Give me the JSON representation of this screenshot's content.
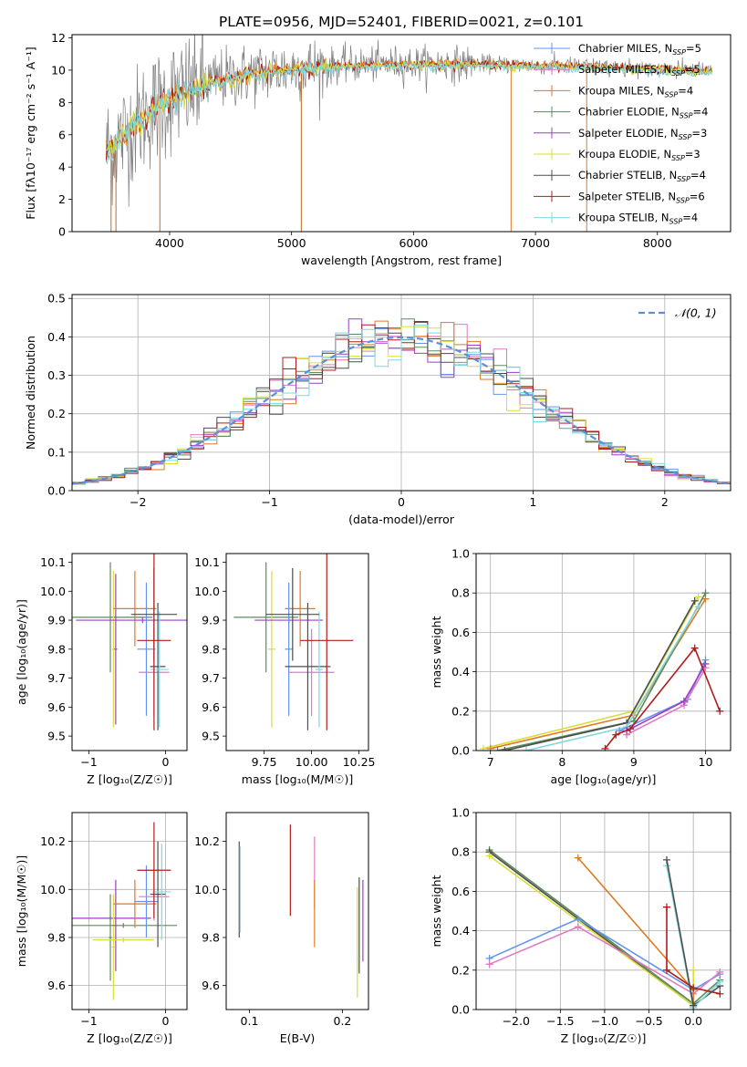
{
  "figure_title": "PLATE=0956, MJD=52401, FIBERID=0021, z=0.101",
  "colors": {
    "chabrier_miles": "#6495ed",
    "salpeter_miles": "#e377c2",
    "kroupa_miles": "#e07a1f",
    "chabrier_elodie": "#5c8a5c",
    "salpeter_elodie": "#9d3fc4",
    "kroupa_elodie": "#d6df3b",
    "chabrier_stelib": "#4d4d4d",
    "salpeter_stelib": "#b01c1c",
    "kroupa_stelib": "#7fd8e0",
    "data_grey": "#808080",
    "normal_curve": "#5b8fd6",
    "grid": "#b0b0b0"
  },
  "chart_data": [
    {
      "id": "spectrum",
      "type": "line",
      "title": "PLATE=0956, MJD=52401, FIBERID=0021, z=0.101",
      "xlabel": "wavelength [Angstrom, rest frame]",
      "ylabel": "Flux [f$_\\lambda$10$^{-17}$ erg cm$^{-2}$ s$^{-1}$ A$^{-1}$]",
      "ylabel_text": "Flux [fλ10⁻¹⁷ erg cm⁻² s⁻¹ A⁻¹]",
      "xlim": [
        3200,
        8600
      ],
      "ylim": [
        0,
        12.2
      ],
      "xticks": [
        4000,
        5000,
        6000,
        7000,
        8000
      ],
      "yticks": [
        0,
        2,
        4,
        6,
        8,
        10,
        12
      ],
      "grid": false,
      "legend_position": "top-right",
      "legend": [
        {
          "label": "Chabrier MILES, N",
          "sub": "SSP",
          "suffix": "=5",
          "color_key": "chabrier_miles"
        },
        {
          "label": "Salpeter MILES, N",
          "sub": "SSP",
          "suffix": "=5",
          "color_key": "salpeter_miles"
        },
        {
          "label": "Kroupa MILES, N",
          "sub": "SSP",
          "suffix": "=4",
          "color_key": "kroupa_miles"
        },
        {
          "label": "Chabrier ELODIE, N",
          "sub": "SSP",
          "suffix": "=4",
          "color_key": "chabrier_elodie"
        },
        {
          "label": "Salpeter ELODIE, N",
          "sub": "SSP",
          "suffix": "=3",
          "color_key": "salpeter_elodie"
        },
        {
          "label": "Kroupa ELODIE, N",
          "sub": "SSP",
          "suffix": "=3",
          "color_key": "kroupa_elodie"
        },
        {
          "label": "Chabrier STELIB, N",
          "sub": "SSP",
          "suffix": "=4",
          "color_key": "chabrier_stelib"
        },
        {
          "label": "Salpeter STELIB, N",
          "sub": "SSP",
          "suffix": "=6",
          "color_key": "salpeter_stelib"
        },
        {
          "label": "Kroupa STELIB, N",
          "sub": "SSP",
          "suffix": "=4",
          "color_key": "kroupa_stelib"
        }
      ],
      "model_curve": {
        "x": [
          3480,
          3600,
          3700,
          3800,
          3900,
          4000,
          4200,
          4400,
          4600,
          4800,
          5000,
          5200,
          5400,
          5600,
          5800,
          6000,
          6200,
          6400,
          6600,
          6800,
          7000,
          7200,
          7400,
          7600,
          7800,
          8000,
          8200,
          8400
        ],
        "y": [
          5.0,
          5.8,
          6.5,
          7.2,
          7.8,
          8.3,
          8.9,
          9.4,
          9.7,
          9.9,
          10.1,
          10.2,
          10.3,
          10.35,
          10.4,
          10.4,
          10.4,
          10.4,
          10.4,
          10.35,
          10.3,
          10.3,
          10.25,
          10.2,
          10.15,
          10.1,
          10.0,
          9.95
        ]
      },
      "notes_drop_lines_x": [
        3520,
        3560,
        3920,
        5080,
        6800,
        7420
      ]
    },
    {
      "id": "residuals",
      "type": "line",
      "xlabel": "(data-model)/error",
      "ylabel": "Normed distribution",
      "xlim": [
        -2.5,
        2.5
      ],
      "ylim": [
        0,
        0.51
      ],
      "xticks": [
        -2,
        -1,
        0,
        1,
        2
      ],
      "xticklabels": [
        "−2",
        "−1",
        "0",
        "1",
        "2"
      ],
      "yticks": [
        0.0,
        0.1,
        0.2,
        0.3,
        0.4,
        0.5
      ],
      "grid": true,
      "legend_position": "top-right",
      "legend": [
        {
          "label": "𝒩(0, 1)",
          "color_key": "normal_curve"
        }
      ],
      "bin_width": 0.1,
      "bin_start": -2.5
    },
    {
      "id": "age_vs_Z",
      "type": "scatter",
      "xlabel": "Z [log₁₀(Z/Z☉)]",
      "ylabel": "age  [log₁₀(age/yr)]",
      "xlim": [
        -1.22,
        0.28
      ],
      "ylim": [
        9.45,
        10.13
      ],
      "xticks": [
        -1,
        0
      ],
      "xticklabels": [
        "−1",
        "0"
      ],
      "yticks": [
        9.5,
        9.6,
        9.7,
        9.8,
        9.9,
        10.0,
        10.1
      ],
      "points": [
        {
          "x": -0.72,
          "y": 9.91,
          "xerr": 0.55,
          "yerr": 0.19,
          "color_key": "chabrier_elodie"
        },
        {
          "x": -0.68,
          "y": 9.8,
          "xerr": 0.02,
          "yerr": 0.27,
          "color_key": "kroupa_elodie"
        },
        {
          "x": -0.65,
          "y": 9.8,
          "xerr": 0.02,
          "yerr": 0.26,
          "color_key": "salpeter_elodie"
        },
        {
          "x": -0.4,
          "y": 9.94,
          "xerr": 0.28,
          "yerr": 0.13,
          "color_key": "kroupa_miles"
        },
        {
          "x": -0.3,
          "y": 9.9,
          "xerr": 0.87,
          "yerr": 0.01,
          "color_key": "salpeter_elodie"
        },
        {
          "x": -0.25,
          "y": 9.8,
          "xerr": 0.12,
          "yerr": 0.23,
          "color_key": "chabrier_miles"
        },
        {
          "x": -0.15,
          "y": 9.72,
          "xerr": 0.2,
          "yerr": 0.15,
          "color_key": "salpeter_miles"
        },
        {
          "x": -0.1,
          "y": 9.74,
          "xerr": 0.1,
          "yerr": 0.22,
          "color_key": "chabrier_stelib"
        },
        {
          "x": -0.08,
          "y": 9.73,
          "xerr": 0.12,
          "yerr": 0.2,
          "color_key": "kroupa_stelib"
        },
        {
          "x": -0.15,
          "y": 9.92,
          "xerr": 0.3,
          "yerr": 0.16,
          "color_key": "chabrier_stelib"
        },
        {
          "x": -0.15,
          "y": 9.83,
          "xerr": 0.22,
          "yerr": 0.31,
          "color_key": "salpeter_stelib"
        }
      ]
    },
    {
      "id": "age_vs_mass",
      "type": "scatter",
      "xlabel": "mass [log₁₀(M/M☉)]",
      "ylabel": "",
      "xlim": [
        9.55,
        10.3
      ],
      "ylim": [
        9.45,
        10.13
      ],
      "xticks": [
        9.75,
        10.0,
        10.25
      ],
      "xticklabels": [
        "9.75",
        "10.00",
        "10.25"
      ],
      "yticks": [
        9.5,
        9.6,
        9.7,
        9.8,
        9.9,
        10.0,
        10.1
      ],
      "points": [
        {
          "x": 9.76,
          "y": 9.91,
          "xerr": 0.17,
          "yerr": 0.19,
          "color_key": "chabrier_elodie"
        },
        {
          "x": 9.79,
          "y": 9.8,
          "xerr": 0.02,
          "yerr": 0.27,
          "color_key": "kroupa_elodie"
        },
        {
          "x": 9.88,
          "y": 9.9,
          "xerr": 0.18,
          "yerr": 0.01,
          "color_key": "salpeter_elodie"
        },
        {
          "x": 9.94,
          "y": 9.94,
          "xerr": 0.08,
          "yerr": 0.13,
          "color_key": "kroupa_miles"
        },
        {
          "x": 9.88,
          "y": 9.8,
          "xerr": 0.02,
          "yerr": 0.23,
          "color_key": "chabrier_miles"
        },
        {
          "x": 10.0,
          "y": 9.72,
          "xerr": 0.12,
          "yerr": 0.15,
          "color_key": "salpeter_miles"
        },
        {
          "x": 9.98,
          "y": 9.74,
          "xerr": 0.12,
          "yerr": 0.22,
          "color_key": "chabrier_stelib"
        },
        {
          "x": 10.04,
          "y": 9.73,
          "xerr": 0.02,
          "yerr": 0.2,
          "color_key": "kroupa_stelib"
        },
        {
          "x": 9.9,
          "y": 9.92,
          "xerr": 0.14,
          "yerr": 0.16,
          "color_key": "chabrier_stelib"
        },
        {
          "x": 10.08,
          "y": 9.83,
          "xerr": 0.14,
          "yerr": 0.31,
          "color_key": "salpeter_stelib"
        }
      ]
    },
    {
      "id": "weight_vs_age",
      "type": "line",
      "xlabel": "age  [log₁₀(age/yr)]",
      "ylabel": "mass weight",
      "xlim": [
        6.8,
        10.35
      ],
      "ylim": [
        0,
        1.0
      ],
      "xticks": [
        7,
        8,
        9,
        10
      ],
      "yticks": [
        0.0,
        0.2,
        0.4,
        0.6,
        0.8,
        1.0
      ],
      "grid": true,
      "series": [
        {
          "color_key": "kroupa_elodie",
          "x": [
            6.9,
            9.0,
            9.9
          ],
          "y": [
            0.01,
            0.2,
            0.78
          ]
        },
        {
          "color_key": "kroupa_miles",
          "x": [
            7.0,
            9.0,
            10.0
          ],
          "y": [
            0.01,
            0.18,
            0.77
          ]
        },
        {
          "color_key": "chabrier_elodie",
          "x": [
            7.1,
            9.0,
            10.0
          ],
          "y": [
            0.0,
            0.15,
            0.8
          ]
        },
        {
          "color_key": "chabrier_stelib",
          "x": [
            7.2,
            8.9,
            9.85
          ],
          "y": [
            0.0,
            0.14,
            0.76
          ]
        },
        {
          "color_key": "kroupa_stelib",
          "x": [
            7.5,
            8.9,
            9.9
          ],
          "y": [
            0.0,
            0.12,
            0.73
          ]
        },
        {
          "color_key": "chabrier_miles",
          "x": [
            8.8,
            9.75,
            10.0
          ],
          "y": [
            0.1,
            0.26,
            0.46
          ]
        },
        {
          "color_key": "salpeter_miles",
          "x": [
            8.9,
            9.7,
            10.0
          ],
          "y": [
            0.08,
            0.23,
            0.42
          ]
        },
        {
          "color_key": "salpeter_elodie",
          "x": [
            8.9,
            9.7,
            10.0
          ],
          "y": [
            0.1,
            0.25,
            0.44
          ]
        },
        {
          "color_key": "salpeter_stelib",
          "x": [
            8.6,
            8.75,
            8.95,
            9.85,
            10.2
          ],
          "y": [
            0.01,
            0.08,
            0.11,
            0.52,
            0.2
          ]
        }
      ]
    },
    {
      "id": "mass_vs_Z",
      "type": "scatter",
      "xlabel": "Z [log₁₀(Z/Z☉)]",
      "ylabel": "mass [log₁₀(M/M☉)]",
      "xlim": [
        -1.22,
        0.28
      ],
      "ylim": [
        9.5,
        10.32
      ],
      "xticks": [
        -1,
        0
      ],
      "xticklabels": [
        "−1",
        "0"
      ],
      "yticks": [
        9.6,
        9.8,
        10.0,
        10.2
      ],
      "grid": true,
      "points": [
        {
          "x": -0.72,
          "y": 9.88,
          "xerr": 0.53,
          "yerr": 0.01,
          "color_key": "salpeter_elodie"
        },
        {
          "x": -0.68,
          "y": 9.76,
          "xerr": 0.02,
          "yerr": 0.22,
          "color_key": "kroupa_elodie"
        },
        {
          "x": -0.65,
          "y": 9.85,
          "xerr": 0.02,
          "yerr": 0.19,
          "color_key": "salpeter_elodie"
        },
        {
          "x": -0.72,
          "y": 9.8,
          "xerr": 0.02,
          "yerr": 0.18,
          "color_key": "chabrier_elodie"
        },
        {
          "x": -0.55,
          "y": 9.79,
          "xerr": 0.4,
          "yerr": 0.01,
          "color_key": "kroupa_elodie"
        },
        {
          "x": -0.55,
          "y": 9.85,
          "xerr": 0.7,
          "yerr": 0.01,
          "color_key": "chabrier_elodie"
        },
        {
          "x": -0.4,
          "y": 9.94,
          "xerr": 0.28,
          "yerr": 0.1,
          "color_key": "kroupa_miles"
        },
        {
          "x": -0.25,
          "y": 9.95,
          "xerr": 0.15,
          "yerr": 0.15,
          "color_key": "chabrier_miles"
        },
        {
          "x": -0.15,
          "y": 9.97,
          "xerr": 0.2,
          "yerr": 0.1,
          "color_key": "salpeter_miles"
        },
        {
          "x": -0.1,
          "y": 9.98,
          "xerr": 0.1,
          "yerr": 0.22,
          "color_key": "chabrier_stelib"
        },
        {
          "x": -0.05,
          "y": 9.99,
          "xerr": 0.12,
          "yerr": 0.2,
          "color_key": "kroupa_stelib"
        },
        {
          "x": -0.15,
          "y": 10.08,
          "xerr": 0.22,
          "yerr": 0.2,
          "color_key": "salpeter_stelib"
        }
      ]
    },
    {
      "id": "mass_vs_ebv",
      "type": "scatter",
      "xlabel": "E(B-V)",
      "ylabel": "",
      "xlim": [
        0.075,
        0.228
      ],
      "ylim": [
        9.5,
        10.32
      ],
      "xticks": [
        0.1,
        0.2
      ],
      "xticklabels": [
        "0.1",
        "0.2"
      ],
      "yticks": [
        9.6,
        9.8,
        10.0,
        10.2
      ],
      "grid": false,
      "points": [
        {
          "x": 0.089,
          "y": 10.0,
          "xerr": 0,
          "yerr": 0.2,
          "color_key": "chabrier_stelib"
        },
        {
          "x": 0.09,
          "y": 10.0,
          "xerr": 0,
          "yerr": 0.18,
          "color_key": "kroupa_stelib"
        },
        {
          "x": 0.144,
          "y": 10.08,
          "xerr": 0,
          "yerr": 0.19,
          "color_key": "salpeter_stelib"
        },
        {
          "x": 0.17,
          "y": 10.07,
          "xerr": 0,
          "yerr": 0.15,
          "color_key": "salpeter_miles"
        },
        {
          "x": 0.17,
          "y": 9.9,
          "xerr": 0,
          "yerr": 0.14,
          "color_key": "kroupa_miles"
        },
        {
          "x": 0.216,
          "y": 9.78,
          "xerr": 0,
          "yerr": 0.23,
          "color_key": "kroupa_elodie"
        },
        {
          "x": 0.218,
          "y": 9.85,
          "xerr": 0,
          "yerr": 0.2,
          "color_key": "chabrier_stelib"
        },
        {
          "x": 0.222,
          "y": 9.87,
          "xerr": 0,
          "yerr": 0.17,
          "color_key": "salpeter_elodie"
        }
      ]
    },
    {
      "id": "weight_vs_Z",
      "type": "line",
      "xlabel": "Z [log₁₀(Z/Z☉)]",
      "ylabel": "mass weight",
      "xlim": [
        -2.45,
        0.42
      ],
      "ylim": [
        0,
        1.0
      ],
      "xticks": [
        -2.0,
        -1.5,
        -1.0,
        -0.5,
        0.0
      ],
      "xticklabels": [
        "−2.0",
        "−1.5",
        "−1.0",
        "−0.5",
        "0.0"
      ],
      "yticks": [
        0.0,
        0.2,
        0.4,
        0.6,
        0.8,
        1.0
      ],
      "grid": true,
      "series": [
        {
          "color_key": "chabrier_elodie",
          "x": [
            -2.3,
            0.0,
            0.3
          ],
          "y": [
            0.81,
            0.03,
            0.15
          ]
        },
        {
          "color_key": "chabrier_stelib",
          "x": [
            -2.3,
            0.0,
            0.3
          ],
          "y": [
            0.8,
            0.02,
            0.12
          ]
        },
        {
          "color_key": "kroupa_elodie",
          "x": [
            -2.3,
            0.0,
            0.0
          ],
          "y": [
            0.78,
            0.02,
            0.2
          ]
        },
        {
          "color_key": "chabrier_miles",
          "x": [
            -2.3,
            -1.3,
            0.0,
            0.3
          ],
          "y": [
            0.26,
            0.46,
            0.1,
            0.18
          ]
        },
        {
          "color_key": "salpeter_miles",
          "x": [
            -2.3,
            -1.3,
            0.0,
            0.3
          ],
          "y": [
            0.23,
            0.42,
            0.08,
            0.19
          ]
        },
        {
          "color_key": "kroupa_miles",
          "x": [
            -1.3,
            0.0,
            0.0
          ],
          "y": [
            0.77,
            0.1,
            0.01
          ]
        },
        {
          "color_key": "kroupa_stelib",
          "x": [
            -0.3,
            0.0,
            0.3
          ],
          "y": [
            0.73,
            0.01,
            0.14
          ]
        },
        {
          "color_key": "chabrier_stelib",
          "x": [
            -0.3,
            0.0
          ],
          "y": [
            0.76,
            0.02
          ]
        },
        {
          "color_key": "salpeter_stelib",
          "x": [
            -0.3,
            -0.3,
            0.0,
            0.3
          ],
          "y": [
            0.52,
            0.2,
            0.11,
            0.08
          ]
        }
      ]
    }
  ]
}
